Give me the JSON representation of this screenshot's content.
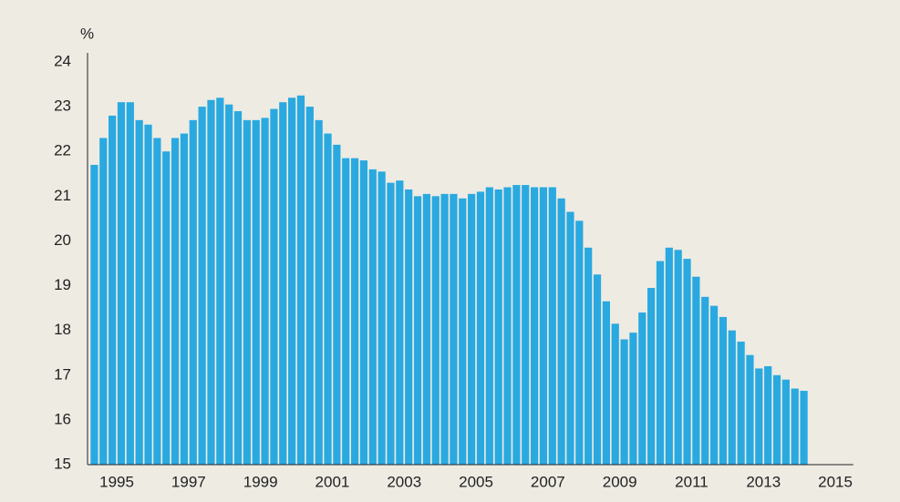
{
  "chart_data": {
    "type": "bar",
    "ylabel": "%",
    "color": "#29a9e0",
    "categories": [
      null,
      null,
      null,
      "1995",
      null,
      null,
      null,
      null,
      null,
      null,
      null,
      "1997",
      null,
      null,
      null,
      null,
      null,
      null,
      null,
      "1999",
      null,
      null,
      null,
      null,
      null,
      null,
      null,
      "2001",
      null,
      null,
      null,
      null,
      null,
      null,
      null,
      "2003",
      null,
      null,
      null,
      null,
      null,
      null,
      null,
      "2005",
      null,
      null,
      null,
      null,
      null,
      null,
      null,
      "2007",
      null,
      null,
      null,
      null,
      null,
      null,
      null,
      "2009",
      null,
      null,
      null,
      null,
      null,
      null,
      null,
      "2011",
      null,
      null,
      null,
      null,
      null,
      null,
      null,
      "2013",
      null,
      null,
      null,
      null,
      null,
      null,
      null,
      "2015",
      null
    ],
    "values": [
      21.7,
      22.3,
      22.8,
      23.1,
      23.1,
      22.7,
      22.6,
      22.3,
      22.0,
      22.3,
      22.4,
      22.7,
      23.0,
      23.15,
      23.2,
      23.05,
      22.9,
      22.7,
      22.7,
      22.75,
      22.95,
      23.1,
      23.2,
      23.25,
      23.0,
      22.7,
      22.4,
      22.15,
      21.85,
      21.85,
      21.8,
      21.6,
      21.55,
      21.3,
      21.35,
      21.15,
      21.0,
      21.05,
      21.0,
      21.05,
      21.05,
      20.95,
      21.05,
      21.1,
      21.2,
      21.15,
      21.2,
      21.25,
      21.25,
      21.2,
      21.2,
      21.2,
      20.95,
      20.65,
      20.45,
      19.85,
      19.25,
      18.65,
      18.15,
      17.8,
      17.95,
      18.4,
      18.95,
      19.55,
      19.85,
      19.8,
      19.6,
      19.2,
      18.75,
      18.55,
      18.3,
      18.0,
      17.75,
      17.45,
      17.15,
      17.2,
      17.0,
      16.9,
      16.7,
      16.65,
      null,
      null,
      null,
      null,
      null
    ],
    "ylim": [
      15,
      24
    ],
    "yticks": [
      15,
      16,
      17,
      18,
      19,
      20,
      21,
      22,
      23,
      24
    ]
  }
}
